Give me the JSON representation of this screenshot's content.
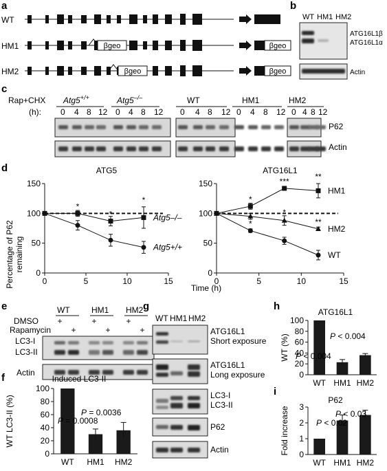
{
  "panels": {
    "a": {
      "letter": "a",
      "rows": [
        {
          "label": "WT",
          "cassettes": []
        },
        {
          "label": "HM1",
          "cassettes": [
            "βgeo",
            "βgeo"
          ]
        },
        {
          "label": "HM2",
          "cassettes": [
            "βgeo",
            "βgeo"
          ]
        }
      ]
    },
    "b": {
      "letter": "b",
      "lanes": [
        "WT",
        "HM1",
        "HM2"
      ],
      "bands": [
        "ATG16L1β",
        "ATG16L1α"
      ],
      "loading": "Actin"
    },
    "c": {
      "letter": "c",
      "treatment": "Rap+CHX",
      "time_label": "(h):",
      "groups": [
        {
          "name": "Atg5",
          "sup": "+/+",
          "italic": true
        },
        {
          "name": "Atg5",
          "sup": "–/–",
          "italic": true
        },
        {
          "name": "WT",
          "sup": "",
          "italic": false
        },
        {
          "name": "HM1",
          "sup": "",
          "italic": false
        },
        {
          "name": "HM2",
          "sup": "",
          "italic": false
        }
      ],
      "timepoints": [
        "0",
        "4",
        "8",
        "12"
      ],
      "blot_labels": [
        "P62",
        "Actin"
      ]
    },
    "d": {
      "letter": "d",
      "ylabel_line1": "Percentage of P62",
      "ylabel_line2": "remaining",
      "xlabel": "Time (h)",
      "charts": [
        {
          "title": "ATG5",
          "x_ticks": [
            "0",
            "5",
            "10",
            "15"
          ],
          "y_ticks": [
            "0",
            "50",
            "100",
            "150"
          ],
          "series": [
            {
              "name": "Atg5–/–",
              "italic": true,
              "marker": "square",
              "x": [
                0,
                4,
                8,
                12
              ],
              "y": [
                100,
                100,
                87,
                93
              ],
              "err": [
                0,
                5,
                8,
                18
              ]
            },
            {
              "name": "Atg5+/+",
              "italic": true,
              "marker": "circle",
              "x": [
                0,
                4,
                8,
                12
              ],
              "y": [
                100,
                80,
                55,
                43
              ],
              "err": [
                0,
                8,
                10,
                10
              ]
            }
          ],
          "stars": [
            {
              "x": 4,
              "y": 100,
              "text": "*"
            },
            {
              "x": 8,
              "y": 87,
              "text": "*"
            },
            {
              "x": 12,
              "y": 111,
              "text": "*"
            }
          ]
        },
        {
          "title": "ATG16L1",
          "x_ticks": [
            "0",
            "5",
            "10",
            "15"
          ],
          "y_ticks": [
            "0",
            "50",
            "100",
            "150"
          ],
          "series": [
            {
              "name": "HM1",
              "italic": false,
              "marker": "square",
              "x": [
                0,
                4,
                8,
                12
              ],
              "y": [
                100,
                112,
                142,
                138
              ],
              "err": [
                0,
                5,
                3,
                12
              ]
            },
            {
              "name": "HM2",
              "italic": false,
              "marker": "triangle",
              "x": [
                0,
                4,
                8,
                12
              ],
              "y": [
                100,
                95,
                88,
                74
              ],
              "err": [
                0,
                5,
                8,
                3
              ]
            },
            {
              "name": "WT",
              "italic": false,
              "marker": "circle",
              "x": [
                0,
                4,
                8,
                12
              ],
              "y": [
                100,
                71,
                54,
                30
              ],
              "err": [
                0,
                3,
                6,
                8
              ]
            }
          ],
          "stars": [
            {
              "x": 4,
              "y": 112,
              "text": "*"
            },
            {
              "x": 8,
              "y": 142,
              "text": "***"
            },
            {
              "x": 12,
              "y": 150,
              "text": "**"
            },
            {
              "x": 4,
              "y": 71,
              "text": "*"
            },
            {
              "x": 8,
              "y": 90,
              "text": "*"
            },
            {
              "x": 12,
              "y": 74,
              "text": "**"
            }
          ]
        }
      ]
    },
    "e": {
      "letter": "e",
      "groups": [
        "WT",
        "HM1",
        "HM2"
      ],
      "dmso_label": "DMSO",
      "rapa_label": "Rapamycin",
      "plus": "+",
      "blot_labels": [
        "LC3-I",
        "LC3-II",
        "Actin"
      ]
    },
    "f": {
      "letter": "f",
      "title": "Induced LC3-II",
      "ylabel": "WT LC3-II (%)",
      "categories": [
        "WT",
        "HM1",
        "HM2"
      ],
      "values": [
        100,
        30,
        36
      ],
      "errors": [
        0,
        8,
        12
      ],
      "y_ticks": [
        "0",
        "20",
        "40",
        "60",
        "80",
        "100"
      ],
      "pvals": [
        {
          "prefix": "P",
          "text": " = 0.0036"
        },
        {
          "prefix": "P",
          "text": " = 0.0008"
        }
      ]
    },
    "g": {
      "letter": "g",
      "lanes": [
        "WT",
        "HM1",
        "HM2"
      ],
      "blot_labels": [
        [
          "ATG16L1",
          "Short exposure"
        ],
        [
          "ATG16L1",
          "Long exposure"
        ],
        [
          "LC3-I",
          "LC3-II"
        ],
        [
          "P62"
        ],
        [
          "Actin"
        ]
      ]
    },
    "h": {
      "letter": "h",
      "title": "ATG16L1",
      "ylabel": "WT (%)",
      "categories": [
        "WT",
        "HM1",
        "HM2"
      ],
      "values": [
        100,
        23,
        36
      ],
      "errors": [
        0,
        5,
        3
      ],
      "y_ticks": [
        "0",
        "20",
        "40",
        "60",
        "80",
        "100"
      ],
      "pvals": [
        {
          "prefix": "P",
          "text": " < 0.004"
        },
        {
          "prefix": "P",
          "text": " < 0.004"
        }
      ]
    },
    "i": {
      "letter": "i",
      "title": "P62",
      "ylabel": "Fold increase",
      "categories": [
        "WT",
        "HM1",
        "HM2"
      ],
      "values": [
        1.0,
        2.15,
        2.5
      ],
      "errors": [
        0,
        0.35,
        0.3
      ],
      "y_ticks": [
        "0",
        "1",
        "2",
        "3"
      ],
      "pvals": [
        {
          "prefix": "P",
          "text": " < 0.02"
        },
        {
          "prefix": "P",
          "text": " < 0.03"
        }
      ]
    }
  },
  "chart_data": [
    {
      "type": "line",
      "title": "ATG5",
      "xlabel": "Time (h)",
      "ylabel": "Percentage of P62 remaining",
      "xlim": [
        0,
        15
      ],
      "ylim": [
        0,
        150
      ],
      "series": [
        {
          "name": "Atg5–/–",
          "x": [
            0,
            4,
            8,
            12
          ],
          "values": [
            100,
            100,
            87,
            93
          ]
        },
        {
          "name": "Atg5+/+",
          "x": [
            0,
            4,
            8,
            12
          ],
          "values": [
            100,
            80,
            55,
            43
          ]
        }
      ]
    },
    {
      "type": "line",
      "title": "ATG16L1",
      "xlabel": "Time (h)",
      "xlim": [
        0,
        15
      ],
      "ylim": [
        0,
        150
      ],
      "series": [
        {
          "name": "HM1",
          "x": [
            0,
            4,
            8,
            12
          ],
          "values": [
            100,
            112,
            142,
            138
          ]
        },
        {
          "name": "HM2",
          "x": [
            0,
            4,
            8,
            12
          ],
          "values": [
            100,
            95,
            88,
            74
          ]
        },
        {
          "name": "WT",
          "x": [
            0,
            4,
            8,
            12
          ],
          "values": [
            100,
            71,
            54,
            30
          ]
        }
      ]
    },
    {
      "type": "bar",
      "title": "Induced LC3-II",
      "ylabel": "WT LC3-II (%)",
      "categories": [
        "WT",
        "HM1",
        "HM2"
      ],
      "values": [
        100,
        30,
        36
      ],
      "ylim": [
        0,
        100
      ]
    },
    {
      "type": "bar",
      "title": "ATG16L1",
      "ylabel": "WT (%)",
      "categories": [
        "WT",
        "HM1",
        "HM2"
      ],
      "values": [
        100,
        23,
        36
      ],
      "ylim": [
        0,
        100
      ]
    },
    {
      "type": "bar",
      "title": "P62",
      "ylabel": "Fold increase",
      "categories": [
        "WT",
        "HM1",
        "HM2"
      ],
      "values": [
        1.0,
        2.15,
        2.5
      ],
      "ylim": [
        0,
        3
      ]
    }
  ]
}
